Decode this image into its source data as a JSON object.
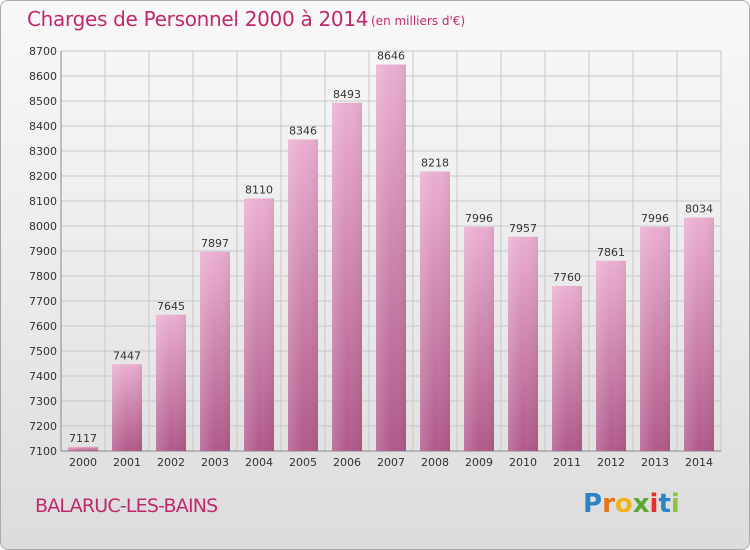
{
  "header": {
    "title": "Charges de Personnel 2000 à 2014",
    "subtitle": "(en milliers d'€)"
  },
  "footer": {
    "commune": "BALARUC-LES-BAINS",
    "logo_text": "Proxiti"
  },
  "colors": {
    "title": "#c0286e",
    "bar_top": "#e8a8cc",
    "bar_bottom": "#b56090",
    "grid": "#c8c8c8",
    "logo": [
      "#2c84c6",
      "#e8731a",
      "#f0b419",
      "#5aa832",
      "#e8302a",
      "#2c84c6",
      "#8cc63e"
    ]
  },
  "chart_data": {
    "type": "bar",
    "title": "Charges de Personnel 2000 à 2014",
    "subtitle": "(en milliers d'€)",
    "categories": [
      "2000",
      "2001",
      "2002",
      "2003",
      "2004",
      "2005",
      "2006",
      "2007",
      "2008",
      "2009",
      "2010",
      "2011",
      "2012",
      "2013",
      "2014"
    ],
    "values": [
      7117,
      7447,
      7645,
      7897,
      8110,
      8346,
      8493,
      8646,
      8218,
      7996,
      7957,
      7760,
      7861,
      7996,
      8034
    ],
    "ylim": [
      7100,
      8700
    ],
    "yticks": [
      7100,
      7200,
      7300,
      7400,
      7500,
      7600,
      7700,
      7800,
      7900,
      8000,
      8100,
      8200,
      8300,
      8400,
      8500,
      8600,
      8700
    ],
    "grid": true,
    "legend": "none"
  }
}
